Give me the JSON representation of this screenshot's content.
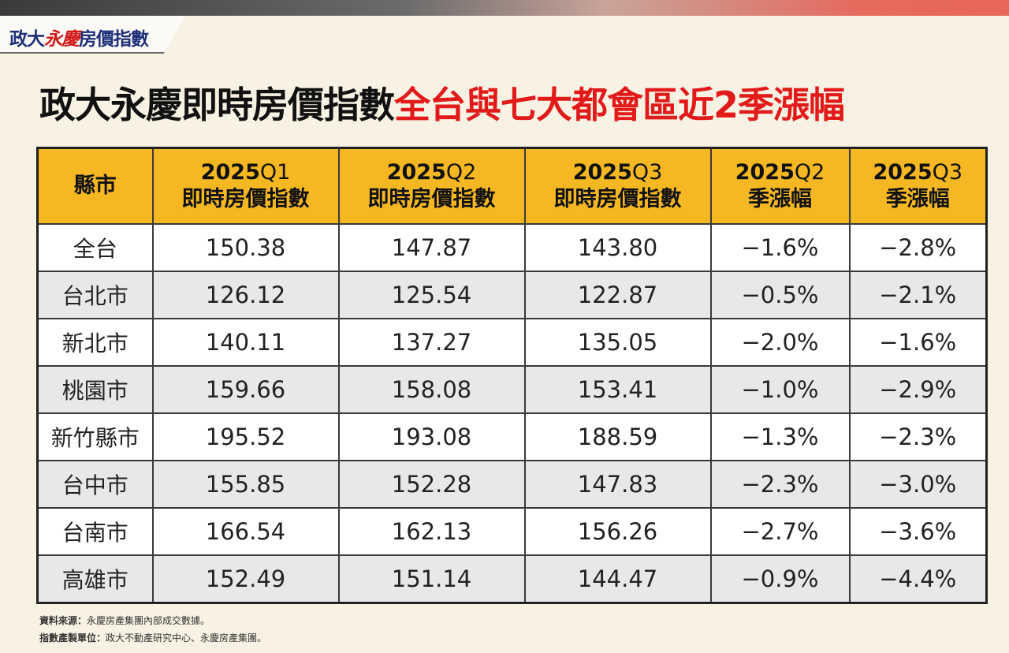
{
  "logo": {
    "part1": "政大",
    "part2": "永慶",
    "part3": "房價指數"
  },
  "title": {
    "black": "政大永慶即時房價指數",
    "red": "全台與七大都會區近2季漲幅"
  },
  "chart_data": {
    "type": "table",
    "header": {
      "city": "縣市",
      "cols": [
        {
          "year": "2025",
          "q": "Q1",
          "label": "即時房價指數"
        },
        {
          "year": "2025",
          "q": "Q2",
          "label": "即時房價指數"
        },
        {
          "year": "2025",
          "q": "Q3",
          "label": "即時房價指數"
        },
        {
          "year": "2025",
          "q": "Q2",
          "label": "季漲幅"
        },
        {
          "year": "2025",
          "q": "Q3",
          "label": "季漲幅"
        }
      ]
    },
    "rows": [
      {
        "city": "全台",
        "values": [
          "150.38",
          "147.87",
          "143.80",
          "−1.6%",
          "−2.8%"
        ]
      },
      {
        "city": "台北市",
        "values": [
          "126.12",
          "125.54",
          "122.87",
          "−0.5%",
          "−2.1%"
        ]
      },
      {
        "city": "新北市",
        "values": [
          "140.11",
          "137.27",
          "135.05",
          "−2.0%",
          "−1.6%"
        ]
      },
      {
        "city": "桃園市",
        "values": [
          "159.66",
          "158.08",
          "153.41",
          "−1.0%",
          "−2.9%"
        ]
      },
      {
        "city": "新竹縣市",
        "values": [
          "195.52",
          "193.08",
          "188.59",
          "−1.3%",
          "−2.3%"
        ]
      },
      {
        "city": "台中市",
        "values": [
          "155.85",
          "152.28",
          "147.83",
          "−2.3%",
          "−3.0%"
        ]
      },
      {
        "city": "台南市",
        "values": [
          "166.54",
          "162.13",
          "156.26",
          "−2.7%",
          "−3.6%"
        ]
      },
      {
        "city": "高雄市",
        "values": [
          "152.49",
          "151.14",
          "144.47",
          "−0.9%",
          "−4.4%"
        ]
      }
    ]
  },
  "footer": {
    "source_label": "資料來源：",
    "source_text": "永慶房產集團內部成交數據。",
    "maker_label": "指數產製單位：",
    "maker_text": "政大不動產研究中心、永慶房產集團。"
  },
  "colors": {
    "header_bg": "#f5b823",
    "title_red": "#e21a1a",
    "logo_blue": "#1f2f7a"
  }
}
